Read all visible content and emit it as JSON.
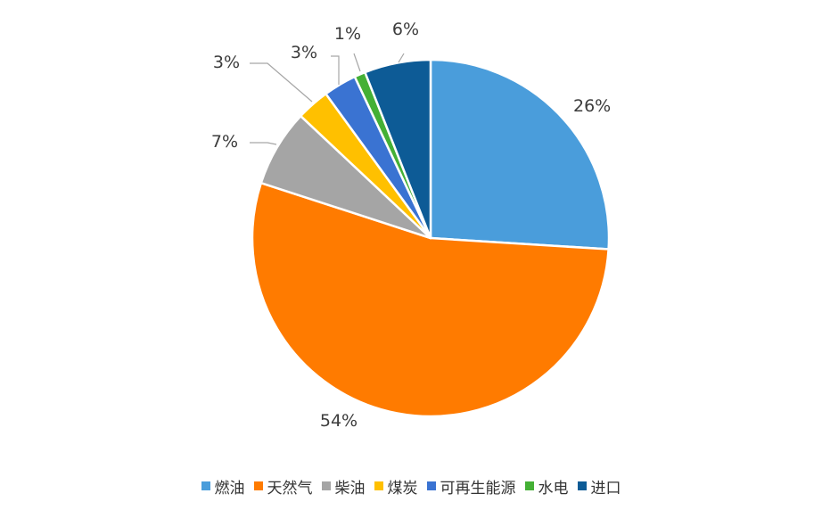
{
  "chart_data": {
    "type": "pie",
    "title": "",
    "start_angle_deg": 0,
    "direction": "clockwise",
    "legend_position": "bottom",
    "slices": [
      {
        "label": "燃油",
        "value": 26,
        "display": "26%",
        "color": "#4a9ddb"
      },
      {
        "label": "天然气",
        "value": 54,
        "display": "54%",
        "color": "#ff7b00"
      },
      {
        "label": "柴油",
        "value": 7,
        "display": "7%",
        "color": "#a5a5a5"
      },
      {
        "label": "煤炭",
        "value": 3,
        "display": "3%",
        "color": "#ffc000"
      },
      {
        "label": "可再生能源",
        "value": 3,
        "display": "3%",
        "color": "#3a73d2"
      },
      {
        "label": "水电",
        "value": 1,
        "display": "1%",
        "color": "#44b035"
      },
      {
        "label": "进口",
        "value": 6,
        "display": "6%",
        "color": "#0d5b96"
      }
    ]
  }
}
